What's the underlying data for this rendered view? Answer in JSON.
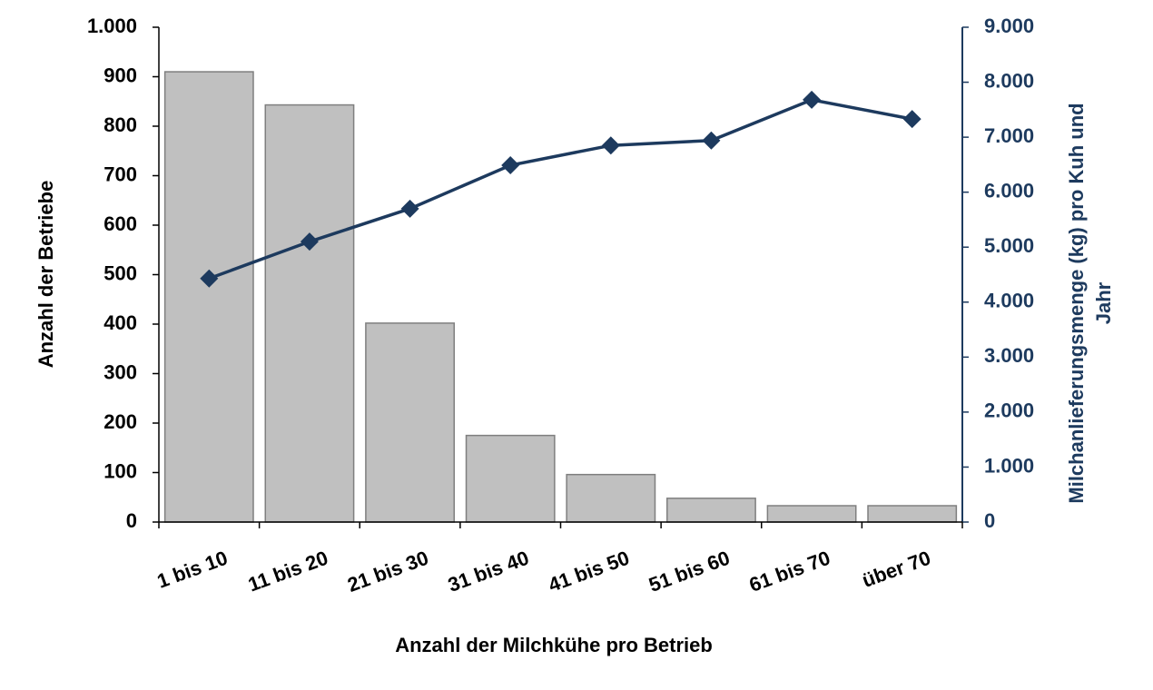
{
  "chart_data": {
    "type": "combo",
    "xlabel": "Anzahl der Milchkühe pro Betrieb",
    "ylabel": "Anzahl der Betriebe",
    "y2label": [
      "Milchanlieferungsmenge (kg) pro Kuh und",
      "Jahr"
    ],
    "categories": [
      "1 bis 10",
      "11 bis 20",
      "21 bis 30",
      "31 bis 40",
      "41 bis 50",
      "51 bis 60",
      "61 bis 70",
      "über 70"
    ],
    "series": [
      {
        "type": "bar",
        "color": "#c0c0c0",
        "values": [
          910,
          843,
          402,
          175,
          96,
          48,
          33,
          33
        ]
      },
      {
        "type": "line",
        "axis": "y2",
        "color": "#1d3a5e",
        "values": [
          4430,
          5100,
          5700,
          6490,
          6850,
          6940,
          7680,
          7330
        ]
      }
    ],
    "ylim": [
      0,
      1000
    ],
    "yticks": [
      0,
      100,
      200,
      300,
      400,
      500,
      600,
      700,
      800,
      900,
      {
        "value": 1000,
        "label": "1.000"
      }
    ],
    "y2lim": [
      0,
      9000
    ],
    "y2ticks": [
      0,
      {
        "value": 1000,
        "label": "1.000"
      },
      {
        "value": 2000,
        "label": "2.000"
      },
      {
        "value": 3000,
        "label": "3.000"
      },
      {
        "value": 4000,
        "label": "4.000"
      },
      {
        "value": 5000,
        "label": "5.000"
      },
      {
        "value": 6000,
        "label": "6.000"
      },
      {
        "value": 7000,
        "label": "7.000"
      },
      {
        "value": 8000,
        "label": "8.000"
      },
      {
        "value": 9000,
        "label": "9.000"
      }
    ],
    "y2color": "#1d3a5e"
  }
}
